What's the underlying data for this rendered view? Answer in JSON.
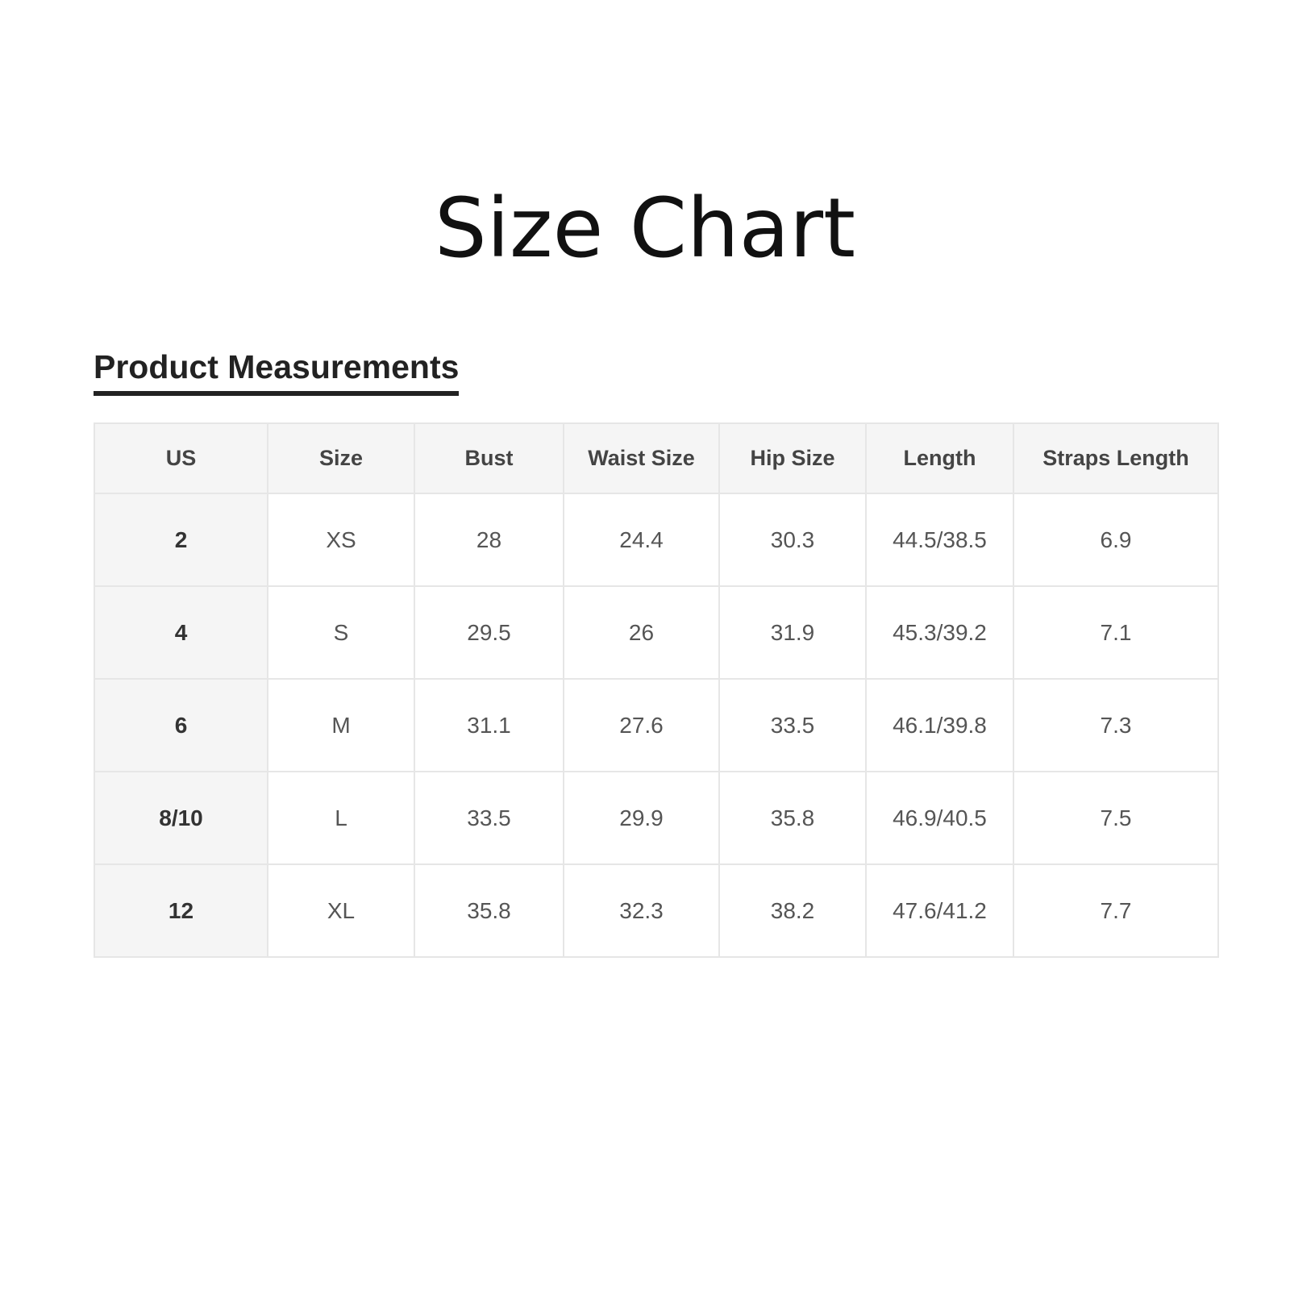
{
  "title": "Size Chart",
  "section_heading": "Product Measurements",
  "table": {
    "headers": [
      "US",
      "Size",
      "Bust",
      "Waist Size",
      "Hip Size",
      "Length",
      "Straps Length"
    ],
    "rows": [
      [
        "2",
        "XS",
        "28",
        "24.4",
        "30.3",
        "44.5/38.5",
        "6.9"
      ],
      [
        "4",
        "S",
        "29.5",
        "26",
        "31.9",
        "45.3/39.2",
        "7.1"
      ],
      [
        "6",
        "M",
        "31.1",
        "27.6",
        "33.5",
        "46.1/39.8",
        "7.3"
      ],
      [
        "8/10",
        "L",
        "33.5",
        "29.9",
        "35.8",
        "46.9/40.5",
        "7.5"
      ],
      [
        "12",
        "XL",
        "35.8",
        "32.3",
        "38.2",
        "47.6/41.2",
        "7.7"
      ]
    ]
  }
}
